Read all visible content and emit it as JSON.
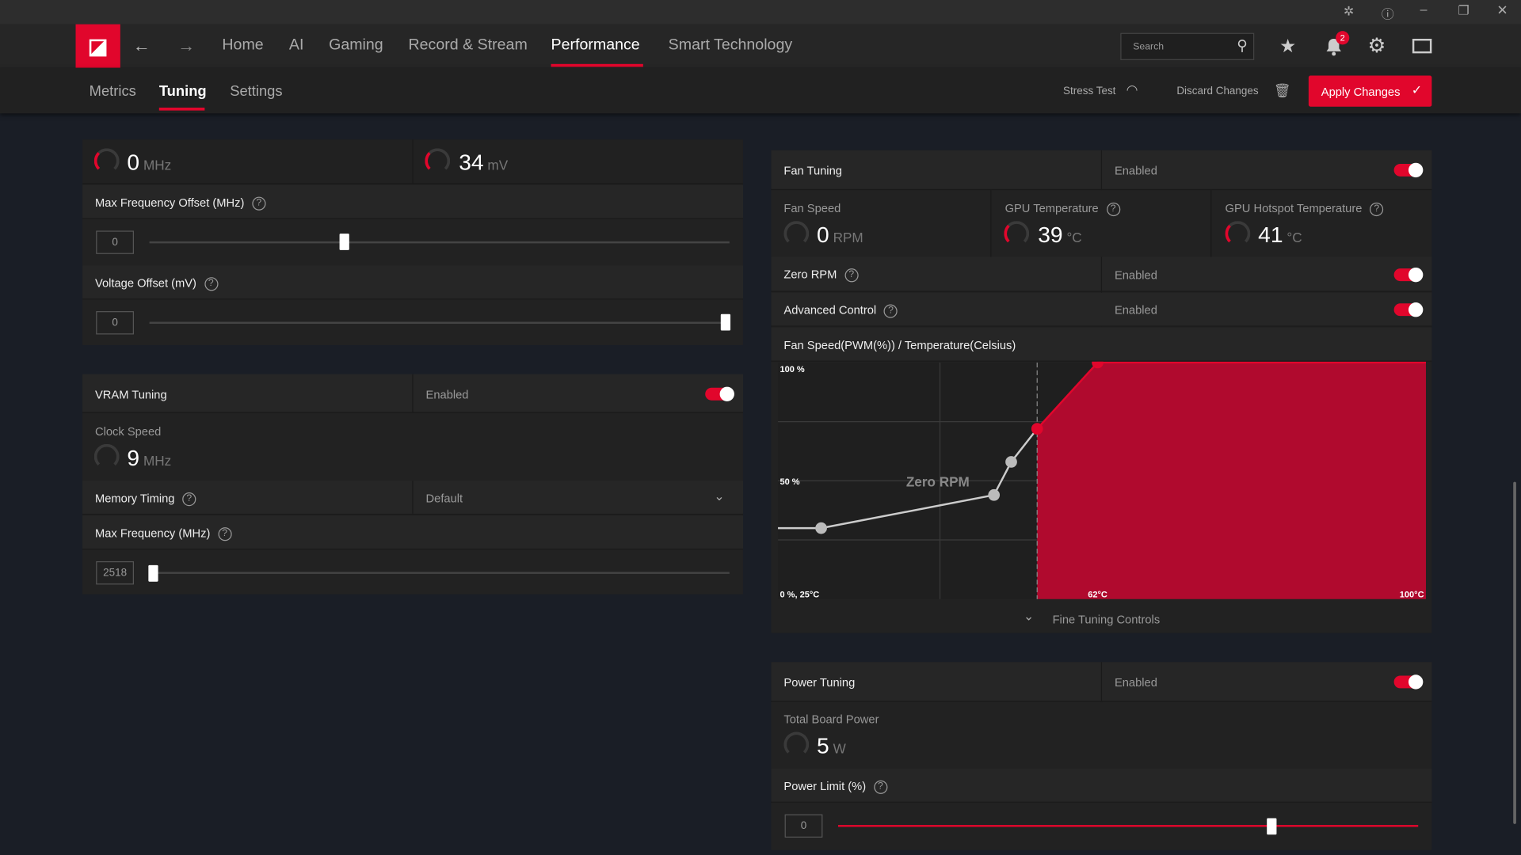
{
  "window": {
    "controls": [
      "bug-icon",
      "help-icon",
      "minimize-icon",
      "restore-icon",
      "close-icon"
    ]
  },
  "nav": {
    "items": [
      "Home",
      "AI",
      "Gaming",
      "Record & Stream",
      "Performance",
      "Smart Technology"
    ],
    "active": "Performance",
    "search_placeholder": "Search",
    "notifications": "2"
  },
  "subnav": {
    "items": [
      "Metrics",
      "Tuning",
      "Settings"
    ],
    "active": "Tuning",
    "stress_test": "Stress Test",
    "discard": "Discard Changes",
    "apply": "Apply Changes"
  },
  "gpu": {
    "clock_value": "0",
    "clock_unit": "MHz",
    "voltage_value": "34",
    "voltage_unit": "mV",
    "max_freq_offset_label": "Max Frequency Offset (MHz)",
    "max_freq_offset_value": "0",
    "max_freq_offset_pos": 0.3,
    "voltage_offset_label": "Voltage Offset (mV)",
    "voltage_offset_value": "0",
    "voltage_offset_pos": 1.0
  },
  "vram": {
    "title": "VRAM Tuning",
    "status": "Enabled",
    "clock_label": "Clock Speed",
    "clock_value": "9",
    "clock_unit": "MHz",
    "memory_timing_label": "Memory Timing",
    "memory_timing_value": "Default",
    "max_freq_label": "Max Frequency (MHz)",
    "max_freq_value": "2518",
    "max_freq_pos": 0.0
  },
  "fan": {
    "title": "Fan Tuning",
    "status": "Enabled",
    "speed_label": "Fan Speed",
    "speed_value": "0",
    "speed_unit": "RPM",
    "gpu_temp_label": "GPU Temperature",
    "gpu_temp_value": "39",
    "gpu_hotspot_label": "GPU Hotspot Temperature",
    "gpu_hotspot_value": "41",
    "temp_unit": "°C",
    "zero_rpm_label": "Zero RPM",
    "zero_rpm_status": "Enabled",
    "advanced_label": "Advanced Control",
    "advanced_status": "Enabled",
    "curve_title": "Fan Speed(PWM(%)) / Temperature(Celsius)",
    "fine_tuning": "Fine Tuning Controls"
  },
  "chart_data": {
    "type": "line",
    "ylabel_top": "100 %",
    "ylabel_mid": "50 %",
    "origin_label": "0 %, 25°C",
    "x_mid_label": "62°C",
    "x_max_label": "100°C",
    "zero_rpm_label": "Zero RPM",
    "xlim": [
      25,
      100
    ],
    "ylim": [
      0,
      100
    ],
    "grid": true,
    "zero_rpm_threshold": 55,
    "accent": "#e1062c",
    "points": [
      {
        "temp": 25,
        "pct": 30
      },
      {
        "temp": 30,
        "pct": 30
      },
      {
        "temp": 50,
        "pct": 44
      },
      {
        "temp": 52,
        "pct": 58
      },
      {
        "temp": 55,
        "pct": 72
      },
      {
        "temp": 62,
        "pct": 100
      },
      {
        "temp": 100,
        "pct": 100
      }
    ]
  },
  "power": {
    "title": "Power Tuning",
    "status": "Enabled",
    "tbp_label": "Total Board Power",
    "tbp_value": "5",
    "tbp_unit": "W",
    "limit_label": "Power Limit (%)",
    "limit_value": "0",
    "limit_pos": 0.75
  }
}
